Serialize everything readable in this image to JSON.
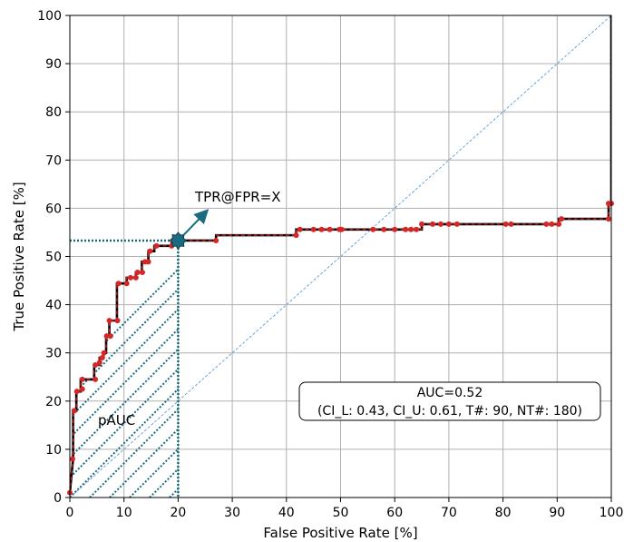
{
  "chart_data": {
    "type": "line",
    "xlabel": "False Positive Rate [%]",
    "ylabel": "True Positive Rate [%]",
    "xlim": [
      0,
      100
    ],
    "ylim": [
      0,
      100
    ],
    "x_ticks": [
      0,
      10,
      20,
      30,
      40,
      50,
      60,
      70,
      80,
      90,
      100
    ],
    "y_ticks": [
      0,
      10,
      20,
      30,
      40,
      50,
      60,
      70,
      80,
      90,
      100
    ],
    "grid": true,
    "colors": {
      "roc_line": "#000000",
      "roc_dash": "#d62728",
      "points": "#d62728",
      "diagonal": "#5b9bd5",
      "highlight": "#1a6b7f",
      "hatch": "#1a6b7f",
      "grid": "#b0b0b0"
    },
    "roc_points": [
      [
        0,
        1
      ],
      [
        0.6,
        8
      ],
      [
        0.6,
        18
      ],
      [
        1.2,
        18
      ],
      [
        1.2,
        22
      ],
      [
        2,
        22
      ],
      [
        2,
        24.5
      ],
      [
        4.5,
        24.5
      ],
      [
        4.5,
        27.5
      ],
      [
        5.5,
        27.5
      ],
      [
        5.5,
        29
      ],
      [
        6.2,
        29
      ],
      [
        6.2,
        30
      ],
      [
        6.7,
        30
      ],
      [
        6.7,
        33.5
      ],
      [
        7.3,
        33.5
      ],
      [
        7.3,
        36.7
      ],
      [
        8.7,
        36.7
      ],
      [
        8.7,
        44.4
      ],
      [
        10.5,
        44.4
      ],
      [
        10.5,
        45.6
      ],
      [
        12.2,
        45.6
      ],
      [
        12.2,
        46.7
      ],
      [
        13.3,
        46.7
      ],
      [
        13.3,
        48.9
      ],
      [
        14.5,
        48.9
      ],
      [
        14.5,
        51.1
      ],
      [
        15.6,
        51.1
      ],
      [
        15.6,
        52.2
      ],
      [
        18.8,
        52.2
      ],
      [
        18.8,
        53.3
      ],
      [
        27,
        53.3
      ],
      [
        27,
        54.4
      ],
      [
        41.8,
        54.4
      ],
      [
        41.8,
        55.6
      ],
      [
        54.5,
        55.6
      ],
      [
        65,
        55.6
      ],
      [
        65,
        56.7
      ],
      [
        90.3,
        56.7
      ],
      [
        90.3,
        57.8
      ],
      [
        99.5,
        57.8
      ],
      [
        99.5,
        61
      ],
      [
        100,
        61
      ],
      [
        100,
        100
      ]
    ],
    "marker_points": [
      [
        0,
        1
      ],
      [
        0.5,
        8
      ],
      [
        0.8,
        18
      ],
      [
        1.3,
        22
      ],
      [
        2.3,
        22.5
      ],
      [
        2.3,
        24.5
      ],
      [
        4.7,
        24.5
      ],
      [
        4.7,
        27.5
      ],
      [
        5.5,
        28
      ],
      [
        6,
        29
      ],
      [
        6.3,
        30
      ],
      [
        6.8,
        33.5
      ],
      [
        7.5,
        33.5
      ],
      [
        7.3,
        36.7
      ],
      [
        8.8,
        36.7
      ],
      [
        9,
        44.4
      ],
      [
        10.5,
        44.4
      ],
      [
        11.2,
        45.6
      ],
      [
        12.2,
        45.6
      ],
      [
        12.5,
        46.7
      ],
      [
        13.4,
        46.7
      ],
      [
        13.9,
        48.9
      ],
      [
        14.5,
        48.9
      ],
      [
        14.8,
        51.1
      ],
      [
        16,
        52.2
      ],
      [
        18.8,
        52.2
      ],
      [
        19,
        53.3
      ],
      [
        27,
        53.3
      ],
      [
        41.8,
        54.4
      ],
      [
        42.5,
        55.6
      ],
      [
        45,
        55.6
      ],
      [
        46.5,
        55.6
      ],
      [
        48,
        55.6
      ],
      [
        49.8,
        55.6
      ],
      [
        50.2,
        55.6
      ],
      [
        56,
        55.6
      ],
      [
        58,
        55.6
      ],
      [
        60,
        55.6
      ],
      [
        62,
        55.6
      ],
      [
        63,
        55.6
      ],
      [
        64,
        55.6
      ],
      [
        65,
        56.7
      ],
      [
        67,
        56.7
      ],
      [
        68.5,
        56.7
      ],
      [
        70,
        56.7
      ],
      [
        71.5,
        56.7
      ],
      [
        80.5,
        56.7
      ],
      [
        81.5,
        56.7
      ],
      [
        88,
        56.7
      ],
      [
        89,
        56.7
      ],
      [
        90.3,
        56.7
      ],
      [
        90.8,
        57.8
      ],
      [
        99.5,
        57.8
      ],
      [
        99.5,
        61
      ],
      [
        100,
        61
      ]
    ],
    "highlight_point": {
      "x": 20,
      "y": 53.3
    },
    "annotations": {
      "tpr_label": "TPR@FPR=X",
      "pauc_label": "pAUC"
    },
    "info_box": {
      "line1": "AUC=0.52",
      "line2": "(CI_L: 0.43, CI_U: 0.61, T#: 90, NT#: 180)"
    }
  }
}
